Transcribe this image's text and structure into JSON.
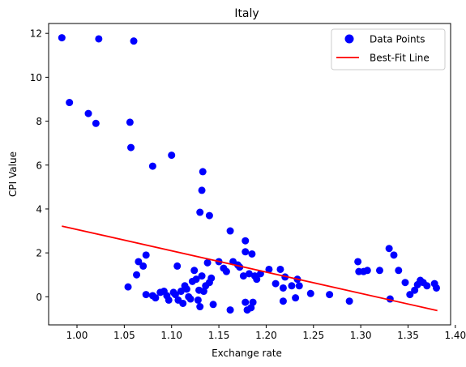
{
  "chart_data": {
    "type": "scatter",
    "title": "Italy",
    "xlabel": "Exchange rate",
    "ylabel": "CPI Value",
    "xlim": [
      0.97,
      1.395
    ],
    "ylim": [
      -1.28,
      12.45
    ],
    "xticks": [
      1.0,
      1.05,
      1.1,
      1.15,
      1.2,
      1.25,
      1.3,
      1.35,
      1.4
    ],
    "xtick_labels": [
      "1.00",
      "1.05",
      "1.10",
      "1.15",
      "1.20",
      "1.25",
      "1.30",
      "1.35",
      "1.40"
    ],
    "yticks": [
      0,
      2,
      4,
      6,
      8,
      10,
      12
    ],
    "ytick_labels": [
      "0",
      "2",
      "4",
      "6",
      "8",
      "10",
      "12"
    ],
    "grid": false,
    "legend": {
      "position": "top-right",
      "entries": [
        "Data Points",
        "Best-Fit Line"
      ]
    },
    "colors": {
      "points": "#0000ff",
      "line": "#ff0000"
    },
    "series": [
      {
        "name": "Data Points",
        "kind": "scatter",
        "points": [
          [
            0.984,
            11.8
          ],
          [
            1.023,
            11.75
          ],
          [
            1.06,
            11.65
          ],
          [
            0.992,
            8.85
          ],
          [
            1.012,
            8.35
          ],
          [
            1.02,
            7.9
          ],
          [
            1.056,
            7.95
          ],
          [
            1.057,
            6.8
          ],
          [
            1.1,
            6.45
          ],
          [
            1.08,
            5.95
          ],
          [
            1.133,
            5.7
          ],
          [
            1.132,
            4.85
          ],
          [
            1.13,
            3.85
          ],
          [
            1.14,
            3.7
          ],
          [
            1.162,
            3.0
          ],
          [
            1.178,
            2.55
          ],
          [
            1.178,
            2.05
          ],
          [
            1.185,
            1.95
          ],
          [
            1.073,
            1.9
          ],
          [
            1.065,
            1.6
          ],
          [
            1.07,
            1.4
          ],
          [
            1.106,
            1.4
          ],
          [
            1.063,
            1.0
          ],
          [
            1.054,
            0.45
          ],
          [
            1.073,
            0.1
          ],
          [
            1.08,
            0.05
          ],
          [
            1.083,
            -0.05
          ],
          [
            1.088,
            0.2
          ],
          [
            1.092,
            0.25
          ],
          [
            1.095,
            0.05
          ],
          [
            1.097,
            -0.15
          ],
          [
            1.102,
            0.2
          ],
          [
            1.104,
            0.1
          ],
          [
            1.107,
            -0.15
          ],
          [
            1.11,
            0.25
          ],
          [
            1.112,
            -0.3
          ],
          [
            1.114,
            0.5
          ],
          [
            1.116,
            0.35
          ],
          [
            1.118,
            0.0
          ],
          [
            1.12,
            -0.1
          ],
          [
            1.122,
            0.7
          ],
          [
            1.124,
            1.2
          ],
          [
            1.126,
            0.8
          ],
          [
            1.128,
            -0.15
          ],
          [
            1.129,
            0.3
          ],
          [
            1.13,
            -0.45
          ],
          [
            1.132,
            0.95
          ],
          [
            1.134,
            0.25
          ],
          [
            1.136,
            0.5
          ],
          [
            1.138,
            1.55
          ],
          [
            1.14,
            0.65
          ],
          [
            1.142,
            0.85
          ],
          [
            1.144,
            -0.35
          ],
          [
            1.15,
            1.6
          ],
          [
            1.155,
            1.3
          ],
          [
            1.158,
            1.15
          ],
          [
            1.162,
            -0.6
          ],
          [
            1.165,
            1.6
          ],
          [
            1.17,
            1.45
          ],
          [
            1.172,
            1.35
          ],
          [
            1.176,
            0.95
          ],
          [
            1.178,
            -0.25
          ],
          [
            1.18,
            -0.6
          ],
          [
            1.182,
            1.05
          ],
          [
            1.184,
            -0.5
          ],
          [
            1.186,
            -0.25
          ],
          [
            1.188,
            0.95
          ],
          [
            1.19,
            0.8
          ],
          [
            1.194,
            1.05
          ],
          [
            1.203,
            1.25
          ],
          [
            1.21,
            0.6
          ],
          [
            1.215,
            1.25
          ],
          [
            1.218,
            0.4
          ],
          [
            1.218,
            -0.2
          ],
          [
            1.22,
            0.9
          ],
          [
            1.227,
            0.5
          ],
          [
            1.231,
            -0.05
          ],
          [
            1.233,
            0.8
          ],
          [
            1.235,
            0.5
          ],
          [
            1.247,
            0.15
          ],
          [
            1.267,
            0.1
          ],
          [
            1.288,
            -0.2
          ],
          [
            1.297,
            1.6
          ],
          [
            1.298,
            1.15
          ],
          [
            1.303,
            1.15
          ],
          [
            1.307,
            1.2
          ],
          [
            1.32,
            1.2
          ],
          [
            1.33,
            2.2
          ],
          [
            1.331,
            -0.1
          ],
          [
            1.335,
            1.9
          ],
          [
            1.34,
            1.2
          ],
          [
            1.347,
            0.65
          ],
          [
            1.352,
            0.1
          ],
          [
            1.357,
            0.3
          ],
          [
            1.36,
            0.55
          ],
          [
            1.363,
            0.75
          ],
          [
            1.366,
            0.65
          ],
          [
            1.37,
            0.5
          ],
          [
            1.378,
            0.6
          ],
          [
            1.38,
            0.4
          ]
        ]
      },
      {
        "name": "Best-Fit Line",
        "kind": "line",
        "points": [
          [
            0.984,
            3.22
          ],
          [
            1.381,
            -0.63
          ]
        ]
      }
    ]
  }
}
